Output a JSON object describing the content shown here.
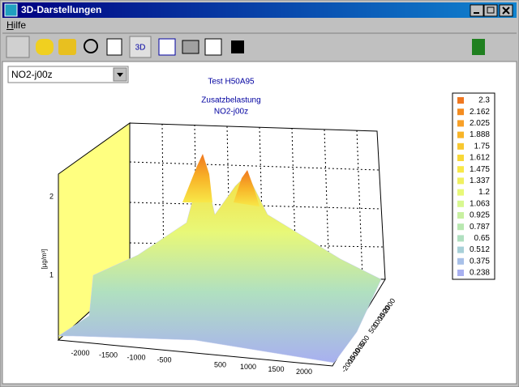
{
  "window": {
    "title": "3D-Darstellungen",
    "menu": [
      "Hilfe"
    ]
  },
  "selector": {
    "value": "NO2-j00z"
  },
  "chart": {
    "title_lines": [
      "Test H50A95",
      "Zusatzbelastung",
      "NO2-j00z"
    ],
    "z_label": "[µg/m³]",
    "z_ticks": [
      1,
      2
    ],
    "x_ticks": [
      -2000,
      -1500,
      -1000,
      -500,
      500,
      1000,
      1500,
      2000
    ],
    "y_ticks": [
      2000,
      1500,
      1000,
      500,
      -500,
      -1000,
      -1500,
      -2000
    ],
    "legend": [
      {
        "value": 2.3,
        "color": "#f07820"
      },
      {
        "value": 2.162,
        "color": "#f48c20"
      },
      {
        "value": 2.025,
        "color": "#f8a028"
      },
      {
        "value": 1.888,
        "color": "#f8b428"
      },
      {
        "value": 1.75,
        "color": "#f8c830"
      },
      {
        "value": 1.612,
        "color": "#f8d838"
      },
      {
        "value": 1.475,
        "color": "#f8e848"
      },
      {
        "value": 1.337,
        "color": "#f0f060"
      },
      {
        "value": 1.2,
        "color": "#e8f878"
      },
      {
        "value": 1.063,
        "color": "#d8f890"
      },
      {
        "value": 0.925,
        "color": "#c8f0a0"
      },
      {
        "value": 0.787,
        "color": "#b8e8b0"
      },
      {
        "value": 0.65,
        "color": "#b0e0c0"
      },
      {
        "value": 0.512,
        "color": "#a8d0d8"
      },
      {
        "value": 0.375,
        "color": "#a8c0e8"
      },
      {
        "value": 0.238,
        "color": "#a8b0f0"
      }
    ]
  }
}
